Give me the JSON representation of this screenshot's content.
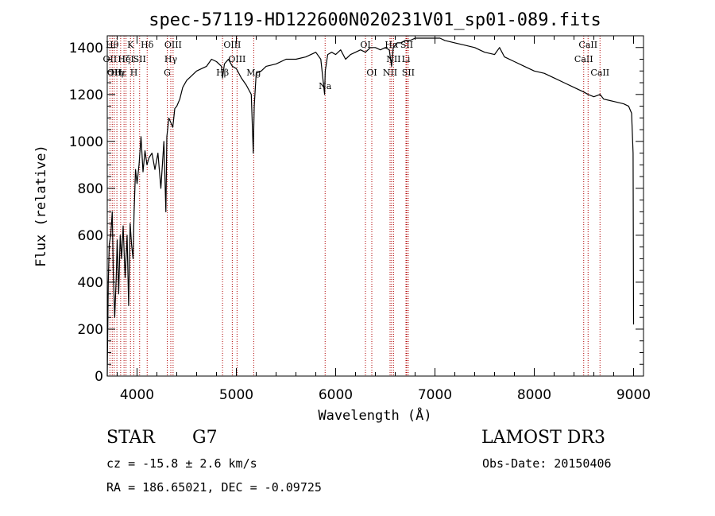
{
  "chart_data": {
    "type": "line",
    "title": "spec-57119-HD122600N020231V01_sp01-089.fits",
    "xlabel": "Wavelength (Å)",
    "ylabel": "Flux (relative)",
    "xlim": [
      3700,
      9100
    ],
    "ylim": [
      0,
      1450
    ],
    "xticks": [
      4000,
      5000,
      6000,
      7000,
      8000,
      9000
    ],
    "yticks": [
      0,
      200,
      400,
      600,
      800,
      1000,
      1200,
      1400
    ],
    "series": [
      {
        "name": "spectrum",
        "x": [
          3700,
          3710,
          3720,
          3735,
          3750,
          3760,
          3775,
          3790,
          3800,
          3815,
          3830,
          3845,
          3860,
          3880,
          3900,
          3915,
          3930,
          3945,
          3960,
          3970,
          3985,
          4000,
          4020,
          4040,
          4060,
          4080,
          4100,
          4120,
          4150,
          4180,
          4210,
          4240,
          4270,
          4290,
          4300,
          4310,
          4320,
          4340,
          4360,
          4380,
          4400,
          4430,
          4460,
          4500,
          4550,
          4600,
          4650,
          4700,
          4750,
          4800,
          4850,
          4861,
          4880,
          4920,
          4960,
          5000,
          5050,
          5100,
          5150,
          5170,
          5180,
          5200,
          5250,
          5300,
          5400,
          5500,
          5600,
          5700,
          5800,
          5850,
          5889,
          5895,
          5920,
          5960,
          6000,
          6050,
          6100,
          6150,
          6200,
          6250,
          6300,
          6350,
          6400,
          6450,
          6500,
          6540,
          6563,
          6580,
          6620,
          6660,
          6700,
          6750,
          6800,
          6850,
          6900,
          6950,
          7000,
          7050,
          7100,
          7200,
          7300,
          7400,
          7500,
          7600,
          7650,
          7700,
          7800,
          7900,
          8000,
          8100,
          8200,
          8300,
          8400,
          8500,
          8542,
          8600,
          8662,
          8700,
          8800,
          8900,
          8950,
          8980,
          8995,
          9000
        ],
        "values": [
          0,
          400,
          560,
          600,
          700,
          450,
          250,
          420,
          580,
          350,
          600,
          500,
          640,
          420,
          600,
          300,
          650,
          560,
          500,
          700,
          880,
          820,
          900,
          1020,
          870,
          960,
          900,
          930,
          950,
          880,
          950,
          800,
          1000,
          700,
          1020,
          1060,
          1100,
          1080,
          1060,
          1140,
          1150,
          1180,
          1230,
          1260,
          1280,
          1300,
          1310,
          1320,
          1350,
          1340,
          1320,
          1270,
          1330,
          1350,
          1320,
          1310,
          1270,
          1240,
          1200,
          950,
          1150,
          1290,
          1300,
          1320,
          1330,
          1350,
          1350,
          1360,
          1380,
          1350,
          1200,
          1300,
          1370,
          1380,
          1370,
          1390,
          1350,
          1370,
          1380,
          1390,
          1380,
          1400,
          1400,
          1390,
          1400,
          1390,
          1320,
          1400,
          1420,
          1420,
          1430,
          1430,
          1440,
          1440,
          1440,
          1440,
          1440,
          1440,
          1430,
          1420,
          1410,
          1400,
          1380,
          1370,
          1400,
          1360,
          1340,
          1320,
          1300,
          1290,
          1270,
          1250,
          1230,
          1210,
          1200,
          1190,
          1200,
          1180,
          1170,
          1160,
          1150,
          1120,
          950,
          220
        ]
      }
    ],
    "line_markers": [
      {
        "x": 3727,
        "label": "OII",
        "row": 1
      },
      {
        "x": 3750,
        "label": "Hθ",
        "row": 0
      },
      {
        "x": 3770,
        "label": "OII",
        "row": 2
      },
      {
        "x": 3797,
        "label": "Hη",
        "row": 2
      },
      {
        "x": 3835,
        "label": "Hε",
        "row": 2
      },
      {
        "x": 3869,
        "label": "Hζ",
        "row": 1
      },
      {
        "x": 3889,
        "label": "HeI",
        "row": 1
      },
      {
        "x": 3934,
        "label": "K",
        "row": 0
      },
      {
        "x": 3968,
        "label": "H",
        "row": 2
      },
      {
        "x": 4026,
        "label": "SII",
        "row": 1
      },
      {
        "x": 4102,
        "label": "Hδ",
        "row": 0
      },
      {
        "x": 4304,
        "label": "G",
        "row": 2
      },
      {
        "x": 4340,
        "label": "Hγ",
        "row": 1
      },
      {
        "x": 4363,
        "label": "OIII",
        "row": 0
      },
      {
        "x": 4861,
        "label": "Hβ",
        "row": 2
      },
      {
        "x": 4959,
        "label": "OIII",
        "row": 0
      },
      {
        "x": 5007,
        "label": "OIII",
        "row": 1
      },
      {
        "x": 5175,
        "label": "Mg",
        "row": 2
      },
      {
        "x": 5894,
        "label": "Na",
        "row": 3
      },
      {
        "x": 6300,
        "label": "OI",
        "row": 0
      },
      {
        "x": 6364,
        "label": "OI",
        "row": 2
      },
      {
        "x": 6548,
        "label": "NII",
        "row": 2
      },
      {
        "x": 6563,
        "label": "Hα",
        "row": 0
      },
      {
        "x": 6583,
        "label": "NII",
        "row": 1
      },
      {
        "x": 6708,
        "label": "Li",
        "row": 1
      },
      {
        "x": 6716,
        "label": "SII",
        "row": 0
      },
      {
        "x": 6731,
        "label": "SII",
        "row": 2
      },
      {
        "x": 8498,
        "label": "CaII",
        "row": 1
      },
      {
        "x": 8542,
        "label": "CaII",
        "row": 0
      },
      {
        "x": 8662,
        "label": "CaII",
        "row": 2
      }
    ]
  },
  "info": {
    "object_class": "STAR",
    "subclass": "G7",
    "survey": "LAMOST DR3",
    "cz": "cz = -15.8 ± 2.6 km/s",
    "obs_date": "Obs-Date: 20150406",
    "coords": "RA = 186.65021, DEC =  -0.09725"
  },
  "colors": {
    "spectrum": "#000000",
    "marker": "#b00000"
  }
}
